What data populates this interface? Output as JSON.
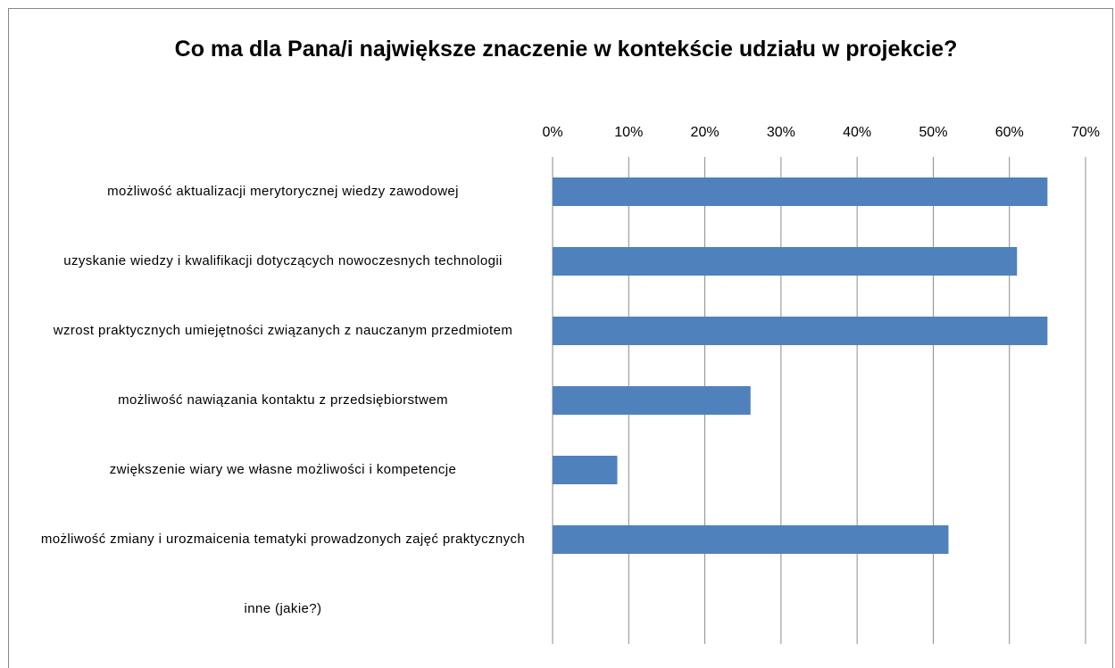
{
  "chart_data": {
    "type": "bar",
    "orientation": "horizontal",
    "title": "Co ma dla Pana/i największe znaczenie w kontekście udziału w projekcie?",
    "categories": [
      "możliwość aktualizacji merytorycznej wiedzy zawodowej",
      "uzyskanie wiedzy i kwalifikacji dotyczących nowoczesnych technologii",
      "wzrost praktycznych umiejętności związanych z nauczanym przedmiotem",
      "możliwość nawiązania kontaktu z przedsiębiorstwem",
      "zwiększenie wiary we własne możliwości i kompetencje",
      "możliwość zmiany i urozmaicenia tematyki prowadzonych zajęć praktycznych",
      "inne (jakie?)"
    ],
    "values": [
      65,
      61,
      65,
      26,
      8.5,
      52,
      0
    ],
    "color": "#4f81bd",
    "xlim": [
      0,
      70
    ],
    "xticks": [
      {
        "value": 0,
        "label": "0%"
      },
      {
        "value": 10,
        "label": "10%"
      },
      {
        "value": 20,
        "label": "20%"
      },
      {
        "value": 30,
        "label": "30%"
      },
      {
        "value": 40,
        "label": "40%"
      },
      {
        "value": 50,
        "label": "50%"
      },
      {
        "value": 60,
        "label": "60%"
      },
      {
        "value": 70,
        "label": "70%"
      }
    ],
    "grid": true
  }
}
